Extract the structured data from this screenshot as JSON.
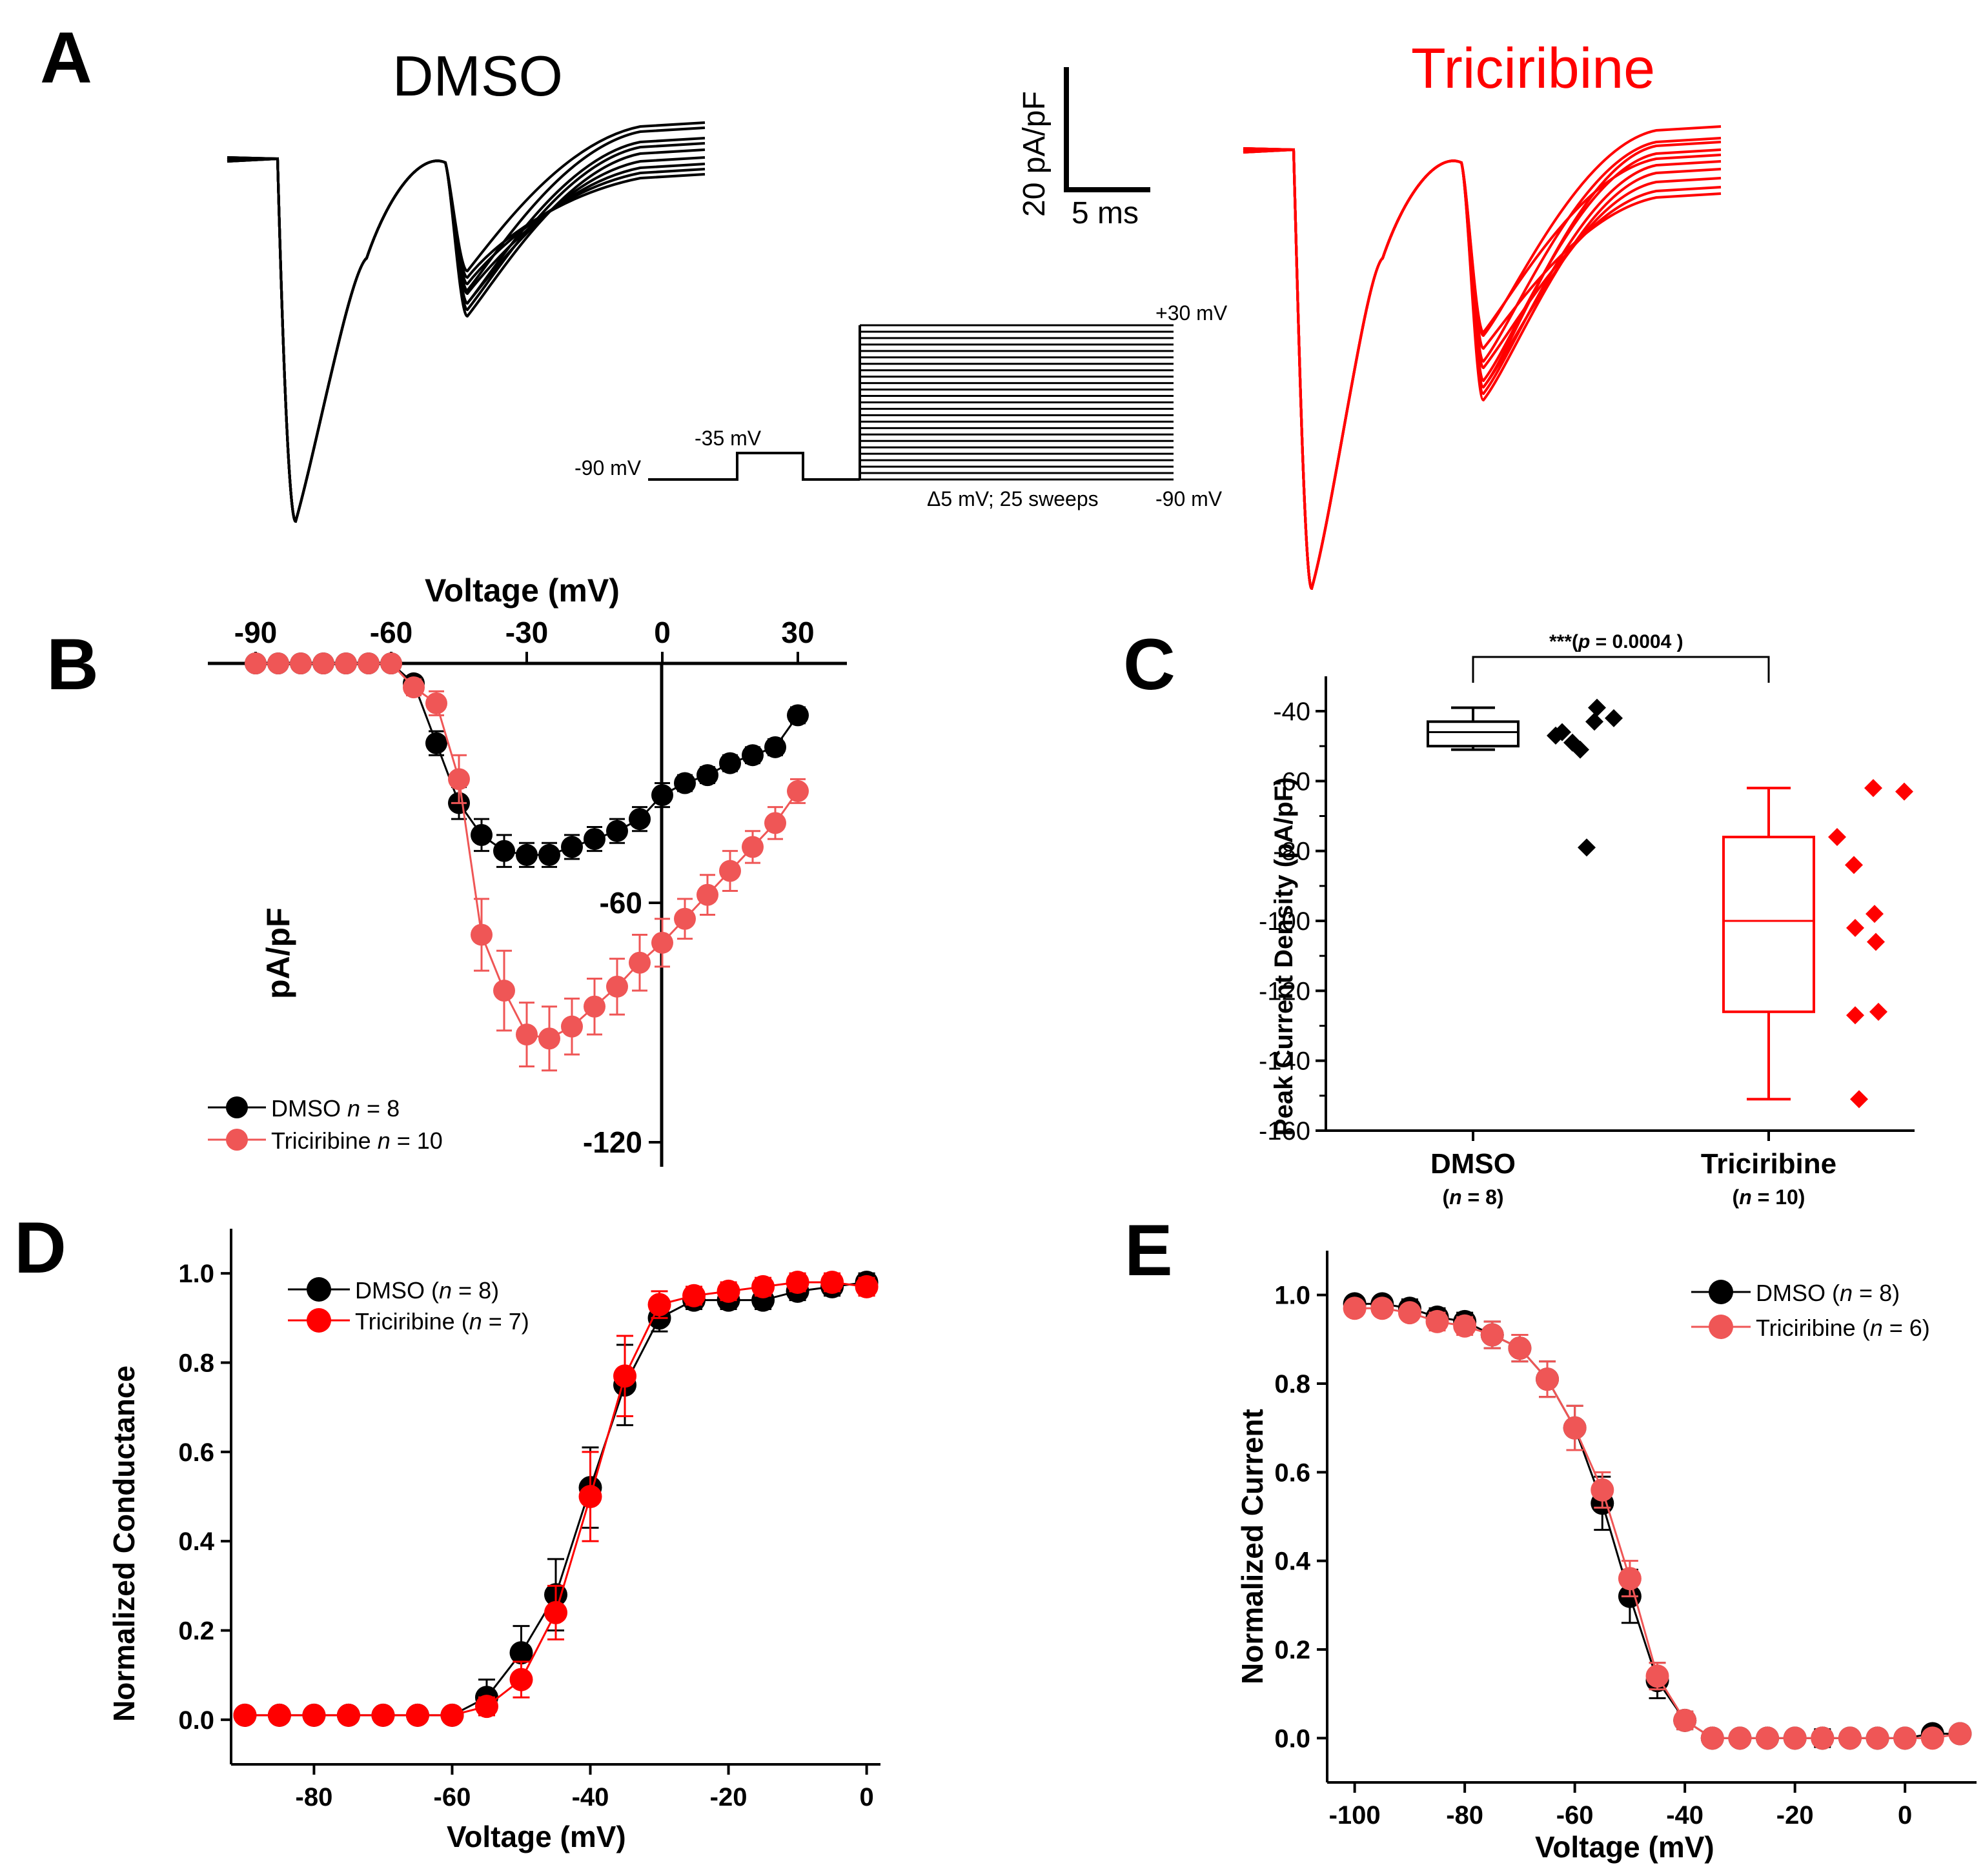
{
  "colors": {
    "dmso": "#000000",
    "tri": "#ff0000",
    "tri_light": "#ef5656"
  },
  "panel_labels": {
    "a": "A",
    "b": "B",
    "c": "C",
    "d": "D",
    "e": "E"
  },
  "panel_a": {
    "title_dmso": "DMSO",
    "title_tri": "Triciribine",
    "scale_y": "20 pA/pF",
    "scale_x": "5 ms",
    "protocol": {
      "hold": "-90 mV",
      "pre": "-35 mV",
      "top": "+30 mV",
      "bottom": "-90 mV",
      "step": "Δ5 mV; 25 sweeps"
    }
  },
  "chart_data": [
    {
      "panel": "B",
      "type": "line",
      "title": "",
      "xlabel": "Voltage (mV)",
      "ylabel": "pA/pF",
      "xlim": [
        -95,
        38
      ],
      "ylim": [
        -125,
        0
      ],
      "xticks": [
        "-90",
        "-60",
        "-30",
        "0",
        "30"
      ],
      "yticks": [
        "-60",
        "-120"
      ],
      "x": [
        -90,
        -85,
        -80,
        -75,
        -70,
        -65,
        -60,
        -55,
        -50,
        -45,
        -40,
        -35,
        -30,
        -25,
        -20,
        -15,
        -10,
        -5,
        0,
        5,
        10,
        15,
        20,
        25,
        30
      ],
      "series": [
        {
          "name": "DMSO",
          "legend": "DMSO",
          "n_label": "n = 8",
          "color": "#000000",
          "values": [
            0,
            0,
            0,
            0,
            0,
            0,
            0,
            -5,
            -20,
            -35,
            -43,
            -47,
            -48,
            -48,
            -46,
            -44,
            -42,
            -39,
            -33,
            -30,
            -28,
            -25,
            -23,
            -21,
            -13
          ],
          "err": [
            0,
            0,
            0,
            0,
            0,
            0,
            0,
            1,
            3,
            4,
            4,
            4,
            3,
            3,
            3,
            3,
            3,
            3,
            3,
            2,
            2,
            2,
            2,
            2,
            2
          ]
        },
        {
          "name": "Triciribine",
          "legend": "Triciribine",
          "n_label": "n = 10",
          "color": "#ef5656",
          "values": [
            0,
            0,
            0,
            0,
            0,
            0,
            0,
            -6,
            -10,
            -29,
            -68,
            -82,
            -93,
            -94,
            -91,
            -86,
            -81,
            -75,
            -70,
            -64,
            -58,
            -52,
            -46,
            -40,
            -32
          ],
          "err": [
            0,
            0,
            0,
            0,
            0,
            0,
            0,
            2,
            3,
            6,
            9,
            10,
            8,
            8,
            7,
            7,
            7,
            7,
            6,
            5,
            5,
            5,
            4,
            4,
            3
          ]
        }
      ]
    },
    {
      "panel": "C",
      "type": "box",
      "title": "",
      "significance": "***(",
      "p_label": "p",
      "p_value": " = 0.0004 )",
      "xlabel": "",
      "ylabel": "Peak Current Density (pA/pF)",
      "ylim": [
        -160,
        -30
      ],
      "yticks": [
        "-40",
        "-60",
        "-80",
        "-100",
        "-120",
        "-140",
        "-160"
      ],
      "groups": [
        {
          "name": "DMSO",
          "n_text": "= 8)",
          "color": "#000000",
          "box": {
            "whisker_low": -51,
            "q1": -50,
            "median": -46,
            "q3": -43,
            "whisker_high": -39
          },
          "points": [
            -47,
            -51,
            -49,
            -39,
            -46,
            -43,
            -42,
            -79
          ]
        },
        {
          "name": "Triciribine",
          "n_text": "= 10)",
          "color": "#ff0000",
          "box": {
            "whisker_low": -151,
            "q1": -126,
            "median": -100,
            "q3": -76,
            "whisker_high": -62
          },
          "points": [
            -76,
            -84,
            -102,
            -127,
            -62,
            -98,
            -106,
            -126,
            -63,
            -151
          ]
        }
      ]
    },
    {
      "panel": "D",
      "type": "line",
      "title": "",
      "xlabel": "Voltage (mV)",
      "ylabel": "Normalized Conductance",
      "xlim": [
        -92,
        2
      ],
      "ylim": [
        -0.1,
        1.1
      ],
      "xticks": [
        "-80",
        "-60",
        "-40",
        "-20",
        "0"
      ],
      "yticks": [
        "0.0",
        "0.2",
        "0.4",
        "0.6",
        "0.8",
        "1.0"
      ],
      "x": [
        -90,
        -85,
        -80,
        -75,
        -70,
        -65,
        -60,
        -55,
        -50,
        -45,
        -40,
        -35,
        -30,
        -25,
        -20,
        -15,
        -10,
        -5,
        0
      ],
      "series": [
        {
          "name": "DMSO",
          "legend": "DMSO (",
          "n_label": "= 8)",
          "color": "#000000",
          "values": [
            0.01,
            0.01,
            0.01,
            0.01,
            0.01,
            0.01,
            0.01,
            0.05,
            0.15,
            0.28,
            0.52,
            0.75,
            0.9,
            0.94,
            0.94,
            0.94,
            0.96,
            0.97,
            0.98
          ],
          "err": [
            0,
            0,
            0,
            0,
            0,
            0,
            0,
            0.04,
            0.06,
            0.08,
            0.09,
            0.09,
            0.03,
            0.02,
            0.02,
            0.02,
            0.02,
            0.02,
            0.02
          ]
        },
        {
          "name": "Triciribine",
          "legend": "Triciribine (",
          "n_label": "= 7)",
          "color": "#ff0000",
          "values": [
            0.01,
            0.01,
            0.01,
            0.01,
            0.01,
            0.01,
            0.01,
            0.03,
            0.09,
            0.24,
            0.5,
            0.77,
            0.93,
            0.95,
            0.96,
            0.97,
            0.98,
            0.98,
            0.97
          ],
          "err": [
            0,
            0,
            0,
            0,
            0,
            0,
            0,
            0.02,
            0.04,
            0.06,
            0.1,
            0.09,
            0.03,
            0.02,
            0.02,
            0.02,
            0.02,
            0.02,
            0.02
          ]
        }
      ]
    },
    {
      "panel": "E",
      "type": "line",
      "title": "",
      "xlabel": "Voltage (mV)",
      "ylabel": "Normalized Current",
      "xlim": [
        -105,
        13
      ],
      "ylim": [
        -0.1,
        1.1
      ],
      "xticks": [
        "-100",
        "-80",
        "-60",
        "-40",
        "-20",
        "0"
      ],
      "yticks": [
        "0.0",
        "0.2",
        "0.4",
        "0.6",
        "0.8",
        "1.0"
      ],
      "x": [
        -100,
        -95,
        -90,
        -85,
        -80,
        -75,
        -70,
        -65,
        -60,
        -55,
        -50,
        -45,
        -40,
        -35,
        -30,
        -25,
        -20,
        -15,
        -10,
        -5,
        0,
        5,
        10
      ],
      "series": [
        {
          "name": "DMSO",
          "legend": "DMSO (",
          "n_label": "= 8)",
          "color": "#000000",
          "values": [
            0.98,
            0.98,
            0.97,
            0.95,
            0.94,
            0.91,
            0.88,
            0.81,
            0.7,
            0.53,
            0.32,
            0.13,
            0.04,
            0.0,
            0.0,
            0.0,
            0.0,
            0.0,
            0.0,
            0.0,
            0.0,
            0.01,
            0.01
          ],
          "err": [
            0.01,
            0.01,
            0.02,
            0.02,
            0.02,
            0.03,
            0.03,
            0.04,
            0.05,
            0.06,
            0.06,
            0.04,
            0.02,
            0.01,
            0.01,
            0.01,
            0.01,
            0.02,
            0.01,
            0.01,
            0.01,
            0.01,
            0.01
          ]
        },
        {
          "name": "Triciribine",
          "legend": "Triciribine (",
          "n_label": "= 6)",
          "color": "#ef5656",
          "values": [
            0.97,
            0.97,
            0.96,
            0.94,
            0.93,
            0.91,
            0.88,
            0.81,
            0.7,
            0.56,
            0.36,
            0.14,
            0.04,
            0.0,
            0.0,
            0.0,
            0.0,
            0.0,
            0.0,
            0.0,
            0.0,
            0.0,
            0.01
          ],
          "err": [
            0.01,
            0.01,
            0.01,
            0.02,
            0.02,
            0.03,
            0.03,
            0.04,
            0.05,
            0.04,
            0.04,
            0.03,
            0.02,
            0.01,
            0.01,
            0.01,
            0.01,
            0.01,
            0.01,
            0.01,
            0.01,
            0.01,
            0.01
          ]
        }
      ]
    }
  ]
}
